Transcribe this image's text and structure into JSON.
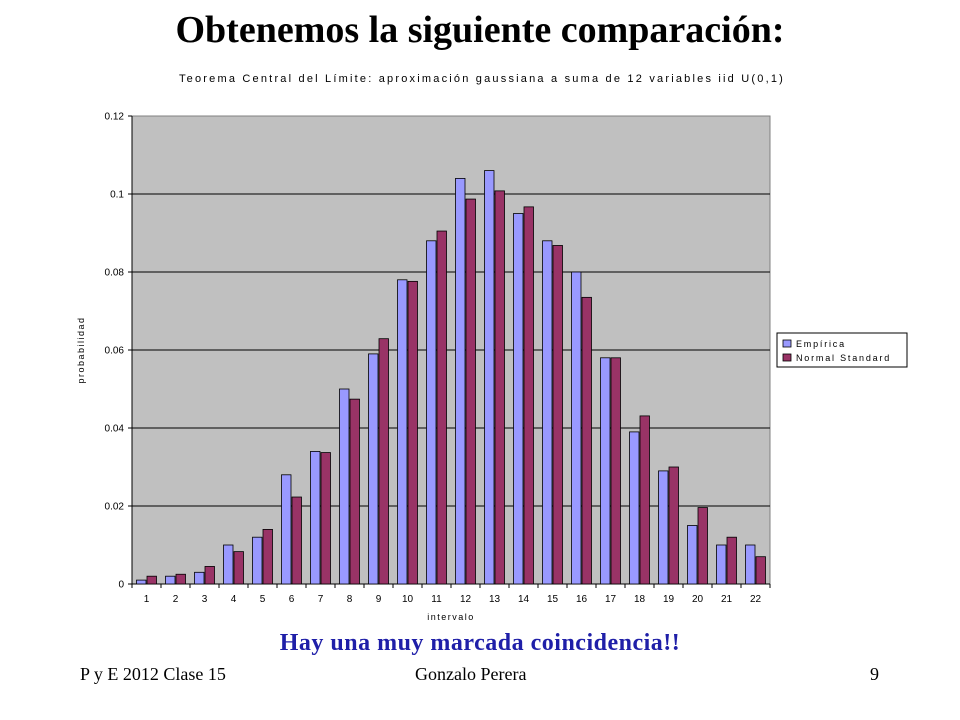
{
  "slide": {
    "title": "Obtenemos la siguiente comparación:",
    "caption": "Hay una muy marcada coincidencia!!",
    "footer_left": "P y E 2012 Clase 15",
    "footer_center": "Gonzalo Perera",
    "page_number": "9"
  },
  "colors": {
    "plot_bg": "#c0c0c0",
    "empirica": "#9999ff",
    "normal": "#993366",
    "caption": "#1f1fa8"
  },
  "chart_data": {
    "type": "bar",
    "title": "Teorema Central del Límite: aproximación gaussiana a suma de 12 variables iid U(0,1)",
    "xlabel": "intervalo",
    "ylabel": "probabilidad",
    "ylim": [
      0,
      0.12
    ],
    "yticks": [
      "0",
      "0.02",
      "0.04",
      "0.06",
      "0.08",
      "0.1",
      "0.12"
    ],
    "grid": true,
    "legend_position": "right",
    "categories": [
      "1",
      "2",
      "3",
      "4",
      "5",
      "6",
      "7",
      "8",
      "9",
      "10",
      "11",
      "12",
      "13",
      "14",
      "15",
      "16",
      "17",
      "18",
      "19",
      "20",
      "21",
      "22"
    ],
    "series": [
      {
        "name": "Empírica",
        "values": [
          0.001,
          0.002,
          0.003,
          0.01,
          0.012,
          0.028,
          0.034,
          0.05,
          0.059,
          0.078,
          0.088,
          0.104,
          0.106,
          0.095,
          0.088,
          0.08,
          0.058,
          0.039,
          0.029,
          0.015,
          0.01,
          0.01
        ]
      },
      {
        "name": "Normal Standard",
        "values": [
          0.002,
          0.0025,
          0.0045,
          0.0083,
          0.014,
          0.0223,
          0.0337,
          0.0474,
          0.0629,
          0.0776,
          0.0905,
          0.0987,
          0.1008,
          0.0967,
          0.0868,
          0.0735,
          0.058,
          0.0431,
          0.03,
          0.0196,
          0.012,
          0.007
        ]
      }
    ]
  }
}
